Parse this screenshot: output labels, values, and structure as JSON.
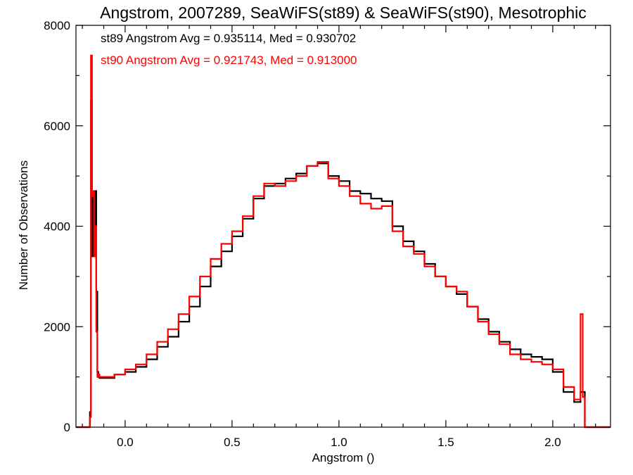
{
  "chart_data": {
    "type": "line",
    "title": "Angstrom, 2007289, SeaWiFS(st89) & SeaWiFS(st90), Mesotrophic",
    "xlabel": "Angstrom ()",
    "ylabel": "Number of Observations",
    "xlim": [
      -0.23,
      2.27
    ],
    "ylim": [
      0,
      8000
    ],
    "x_ticks": [
      0.0,
      0.5,
      1.0,
      1.5,
      2.0
    ],
    "x_tick_labels": [
      "0.0",
      "0.5",
      "1.0",
      "1.5",
      "2.0"
    ],
    "y_ticks": [
      0,
      2000,
      4000,
      6000,
      8000
    ],
    "y_tick_labels": [
      "0",
      "2000",
      "4000",
      "6000",
      "8000"
    ],
    "grid": false,
    "step": true,
    "annotations": [
      {
        "text": "st89 Angstrom Avg = 0.935114, Med = 0.930702",
        "color": "#000000"
      },
      {
        "text": "st90 Angstrom Avg = 0.921743, Med = 0.913000",
        "color": "#ff0000"
      }
    ],
    "series": [
      {
        "color": "#000000",
        "x": [
          -0.23,
          -0.17,
          -0.165,
          -0.16,
          -0.155,
          -0.15,
          -0.145,
          -0.14,
          -0.135,
          -0.13,
          -0.125,
          -0.12,
          -0.1,
          -0.05,
          0.0,
          0.05,
          0.1,
          0.15,
          0.2,
          0.25,
          0.3,
          0.35,
          0.4,
          0.45,
          0.5,
          0.55,
          0.6,
          0.65,
          0.7,
          0.75,
          0.8,
          0.85,
          0.9,
          0.95,
          1.0,
          1.05,
          1.1,
          1.15,
          1.2,
          1.25,
          1.3,
          1.35,
          1.4,
          1.45,
          1.5,
          1.55,
          1.6,
          1.65,
          1.7,
          1.75,
          1.8,
          1.85,
          1.9,
          1.95,
          2.0,
          2.05,
          2.1,
          2.13,
          2.15,
          2.16,
          2.27
        ],
        "y": [
          0,
          0,
          300,
          6500,
          3400,
          4600,
          3600,
          4700,
          2700,
          1100,
          1000,
          980,
          980,
          1050,
          1100,
          1200,
          1350,
          1600,
          1800,
          2100,
          2400,
          2800,
          3200,
          3500,
          3800,
          4150,
          4550,
          4800,
          4850,
          4950,
          5050,
          5200,
          5250,
          5000,
          4900,
          4700,
          4650,
          4550,
          4500,
          4000,
          3700,
          3500,
          3250,
          3000,
          2800,
          2650,
          2400,
          2150,
          1900,
          1700,
          1550,
          1450,
          1400,
          1350,
          1100,
          700,
          500,
          700,
          0,
          0,
          0
        ]
      },
      {
        "color": "#ff0000",
        "x": [
          -0.23,
          -0.17,
          -0.165,
          -0.16,
          -0.155,
          -0.15,
          -0.145,
          -0.14,
          -0.135,
          -0.13,
          -0.125,
          -0.12,
          -0.1,
          -0.05,
          0.0,
          0.05,
          0.1,
          0.15,
          0.2,
          0.25,
          0.3,
          0.35,
          0.4,
          0.45,
          0.5,
          0.55,
          0.6,
          0.65,
          0.7,
          0.75,
          0.8,
          0.85,
          0.9,
          0.95,
          1.0,
          1.05,
          1.1,
          1.15,
          1.2,
          1.25,
          1.3,
          1.35,
          1.4,
          1.45,
          1.5,
          1.55,
          1.6,
          1.65,
          1.7,
          1.75,
          1.8,
          1.85,
          1.9,
          1.95,
          2.0,
          2.05,
          2.1,
          2.13,
          2.14,
          2.15,
          2.16,
          2.27
        ],
        "y": [
          0,
          0,
          200,
          7400,
          4600,
          4700,
          3400,
          4000,
          1900,
          1000,
          1050,
          1000,
          1000,
          1050,
          1150,
          1250,
          1450,
          1700,
          1950,
          2250,
          2600,
          3000,
          3350,
          3650,
          3900,
          4200,
          4600,
          4850,
          4800,
          4900,
          5000,
          5200,
          5280,
          4950,
          4800,
          4600,
          4450,
          4350,
          4400,
          3900,
          3600,
          3450,
          3200,
          3000,
          2800,
          2700,
          2400,
          2100,
          1850,
          1650,
          1450,
          1350,
          1300,
          1250,
          1150,
          800,
          550,
          2250,
          600,
          0,
          0,
          0
        ]
      }
    ]
  }
}
